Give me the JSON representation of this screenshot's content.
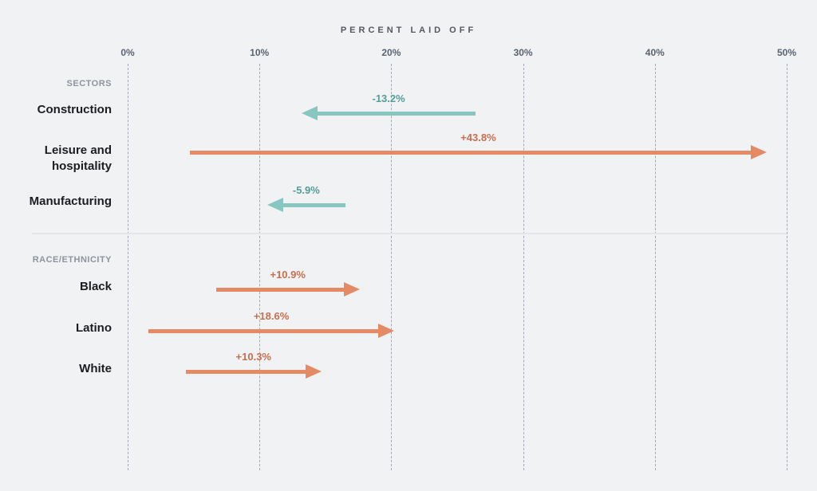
{
  "chart_data": {
    "type": "arrow",
    "title": "PERCENT LAID OFF",
    "x_axis": {
      "min": 0,
      "max": 50,
      "tick_values": [
        0,
        10,
        20,
        30,
        40,
        50
      ],
      "tick_labels": [
        "0%",
        "10%",
        "20%",
        "30%",
        "40%",
        "50%"
      ],
      "grid": "dashed-vertical"
    },
    "colors": {
      "background": "#f1f2f4",
      "positive_arrow": "#e48a64",
      "positive_text": "#c86f50",
      "negative_arrow": "#87c7bf",
      "negative_text": "#549e98",
      "label_text": "#1d1d21",
      "group_text": "#8e949d",
      "axis_text": "#5b6270",
      "title_text": "#54575d"
    },
    "groups": [
      {
        "label": "SECTORS",
        "rows": [
          {
            "label": "Construction",
            "label_lines": [
              "Construction"
            ],
            "start": 26.4,
            "end": 13.2,
            "change": -13.2,
            "change_label": "-13.2%"
          },
          {
            "label": "Leisure and hospitality",
            "label_lines": [
              "Leisure and",
              "hospitality"
            ],
            "start": 4.7,
            "end": 48.5,
            "change": 43.8,
            "change_label": "+43.8%"
          },
          {
            "label": "Manufacturing",
            "label_lines": [
              "Manufacturing"
            ],
            "start": 16.5,
            "end": 10.6,
            "change": -5.9,
            "change_label": "-5.9%"
          }
        ]
      },
      {
        "label": "RACE/ETHNICITY",
        "rows": [
          {
            "label": "Black",
            "label_lines": [
              "Black"
            ],
            "start": 6.7,
            "end": 17.6,
            "change": 10.9,
            "change_label": "+10.9%"
          },
          {
            "label": "Latino",
            "label_lines": [
              "Latino"
            ],
            "start": 1.6,
            "end": 20.2,
            "change": 18.6,
            "change_label": "+18.6%"
          },
          {
            "label": "White",
            "label_lines": [
              "White"
            ],
            "start": 4.4,
            "end": 14.7,
            "change": 10.3,
            "change_label": "+10.3%"
          }
        ]
      }
    ]
  }
}
